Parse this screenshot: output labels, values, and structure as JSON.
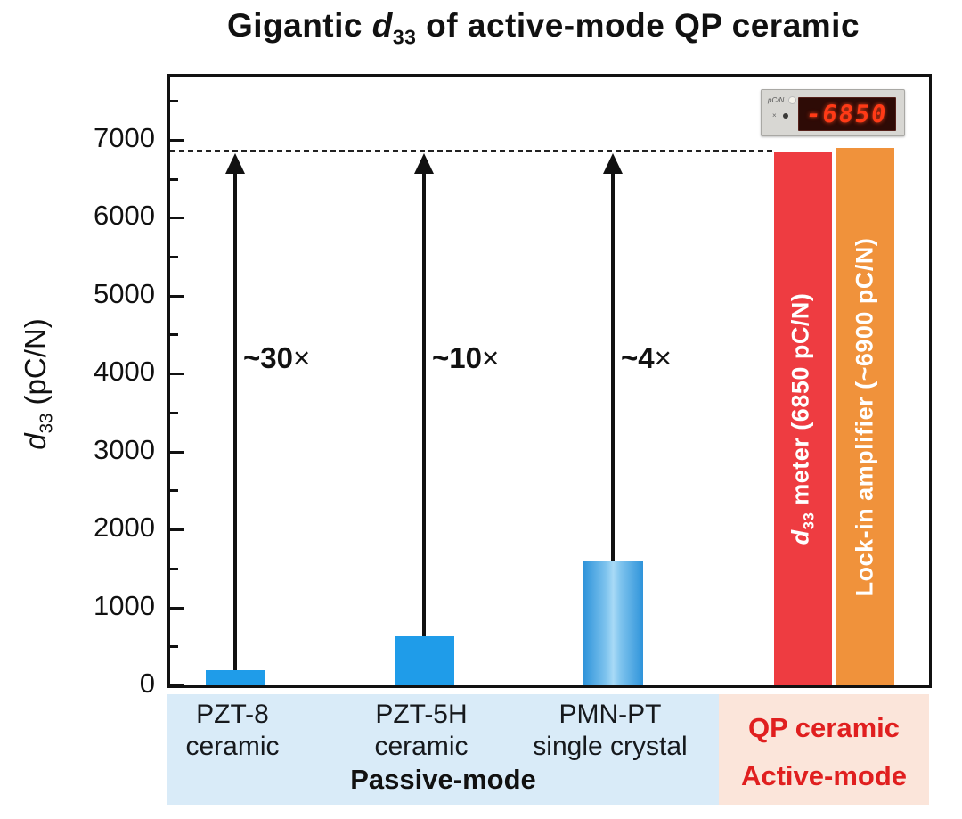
{
  "chart_data": {
    "type": "bar",
    "title": "Gigantic d33 of active-mode QP ceramic",
    "title_parts": {
      "pre": "Gigantic ",
      "var": "d",
      "sub": "33",
      "post": " of active-mode QP ceramic"
    },
    "ylabel": "d33 (pC/N)",
    "ylabel_parts": {
      "var": "d",
      "sub": "33",
      "unit": " (pC/N)"
    },
    "ylim": [
      0,
      7810
    ],
    "yticks": [
      0,
      1000,
      2000,
      3000,
      4000,
      5000,
      6000,
      7000
    ],
    "yticks_minor": [
      500,
      1500,
      2500,
      3500,
      4500,
      5500,
      6500,
      7500
    ],
    "grid": false,
    "legend": "none",
    "dashed_reference_value": 6870,
    "categories": [
      "PZT-8 ceramic",
      "PZT-5H ceramic",
      "PMN-PT single crystal",
      "QP ceramic (d33 meter)",
      "QP ceramic (lock-in amplifier)"
    ],
    "values": [
      200,
      630,
      1590,
      6850,
      6900
    ],
    "meter_label": {
      "var": "d",
      "sub": "33",
      "rest": " meter (6850 pC/N)"
    },
    "lockin_label": "Lock-in amplifier (~6900 pC/N)",
    "arrows": [
      {
        "bar": 0,
        "factor": "~30",
        "times": "×"
      },
      {
        "bar": 1,
        "factor": "~10",
        "times": "×"
      },
      {
        "bar": 2,
        "factor": "~4",
        "times": "×"
      }
    ],
    "category_labels": [
      {
        "line1": "PZT-8",
        "line2": "ceramic"
      },
      {
        "line1": "PZT-5H",
        "line2": "ceramic"
      },
      {
        "line1": "PMN-PT",
        "line2": "single crystal"
      }
    ],
    "groups": {
      "passive": "Passive-mode",
      "active_line1": "QP ceramic",
      "active_line2": "Active-mode"
    }
  },
  "device": {
    "reading": "-6850",
    "unit": "pC/N"
  },
  "colors": {
    "bar_blue": "#1F9CE9",
    "bar_red": "#EE3C41",
    "bar_orange": "#F0923B",
    "band_passive": "#D9EBF8",
    "band_active": "#FBE5DA",
    "active_text": "#E01F1F",
    "digit_red": "#FF3A16"
  }
}
